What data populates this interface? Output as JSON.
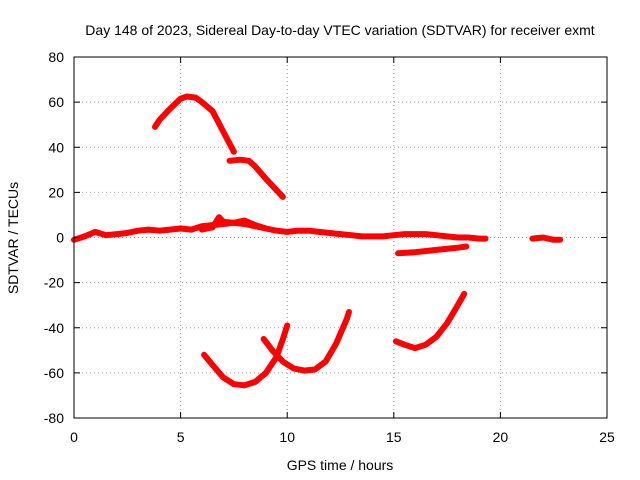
{
  "chart_data": {
    "type": "scatter",
    "title": "Day 148 of 2023, Sidereal Day-to-day VTEC variation (SDTVAR) for receiver exmt",
    "xlabel": "GPS time / hours",
    "ylabel": "SDTVAR / TECUs",
    "xlim": [
      0,
      25
    ],
    "ylim": [
      -80,
      80
    ],
    "xticks": [
      0,
      5,
      10,
      15,
      20,
      25
    ],
    "yticks": [
      -80,
      -60,
      -40,
      -20,
      0,
      20,
      40,
      60,
      80
    ],
    "xtick_labels": [
      "0",
      "5",
      "10",
      "15",
      "20",
      "25"
    ],
    "ytick_labels": [
      "-80",
      "-60",
      "-40",
      "-20",
      "0",
      "20",
      "40",
      "60",
      "80"
    ],
    "grid": true,
    "legend": "none",
    "series_color": "#ff0000",
    "series": [
      {
        "name": "near-zero band",
        "points": [
          [
            0.0,
            -1.0
          ],
          [
            0.5,
            0.5
          ],
          [
            1.0,
            2.5
          ],
          [
            1.5,
            1.0
          ],
          [
            2.0,
            1.5
          ],
          [
            2.5,
            2.0
          ],
          [
            3.0,
            3.0
          ],
          [
            3.5,
            3.5
          ],
          [
            4.0,
            3.0
          ],
          [
            4.5,
            3.5
          ],
          [
            5.0,
            4.0
          ],
          [
            5.5,
            3.5
          ],
          [
            6.0,
            5.0
          ],
          [
            6.5,
            5.5
          ],
          [
            7.0,
            6.0
          ],
          [
            7.5,
            6.5
          ],
          [
            8.0,
            6.0
          ],
          [
            8.5,
            5.0
          ],
          [
            9.0,
            4.0
          ],
          [
            9.5,
            3.0
          ],
          [
            10.0,
            2.5
          ],
          [
            10.5,
            3.0
          ],
          [
            11.0,
            3.0
          ],
          [
            11.5,
            2.5
          ],
          [
            12.0,
            2.0
          ],
          [
            12.5,
            1.5
          ],
          [
            13.0,
            1.0
          ],
          [
            13.5,
            0.5
          ],
          [
            14.0,
            0.5
          ],
          [
            14.5,
            0.5
          ],
          [
            15.0,
            1.0
          ],
          [
            15.5,
            1.5
          ],
          [
            16.0,
            1.5
          ],
          [
            16.5,
            1.5
          ],
          [
            17.0,
            1.0
          ],
          [
            17.5,
            0.5
          ],
          [
            18.0,
            0.0
          ],
          [
            18.5,
            0.0
          ],
          [
            19.0,
            -0.5
          ],
          [
            19.3,
            -0.5
          ]
        ]
      },
      {
        "name": "upper band",
        "points": [
          [
            6.0,
            3.5
          ],
          [
            6.5,
            4.5
          ],
          [
            6.8,
            9.0
          ],
          [
            7.0,
            7.0
          ],
          [
            7.5,
            6.5
          ],
          [
            8.0,
            7.5
          ],
          [
            8.5,
            5.5
          ],
          [
            9.0,
            4.0
          ]
        ]
      },
      {
        "name": "late-day band",
        "points": [
          [
            21.5,
            -0.5
          ],
          [
            22.0,
            0.0
          ],
          [
            22.5,
            -1.0
          ],
          [
            22.8,
            -1.0
          ]
        ]
      },
      {
        "name": "negative offset segment",
        "points": [
          [
            15.2,
            -7.0
          ],
          [
            16.0,
            -6.5
          ],
          [
            17.0,
            -5.5
          ],
          [
            18.0,
            -4.5
          ],
          [
            18.4,
            -4.0
          ]
        ]
      },
      {
        "name": "arc A",
        "points": [
          [
            3.8,
            49.0
          ],
          [
            4.0,
            52.0
          ],
          [
            4.5,
            57.0
          ],
          [
            5.0,
            61.5
          ],
          [
            5.3,
            62.5
          ],
          [
            5.7,
            62.0
          ],
          [
            6.0,
            60.0
          ],
          [
            6.5,
            56.0
          ],
          [
            7.0,
            47.0
          ],
          [
            7.5,
            38.0
          ]
        ]
      },
      {
        "name": "arc B",
        "points": [
          [
            7.3,
            34.0
          ],
          [
            7.8,
            34.5
          ],
          [
            8.2,
            34.0
          ],
          [
            8.5,
            31.5
          ],
          [
            9.0,
            26.0
          ],
          [
            9.5,
            21.0
          ],
          [
            9.8,
            18.0
          ]
        ]
      },
      {
        "name": "arc C",
        "points": [
          [
            6.1,
            -52.0
          ],
          [
            6.5,
            -56.5
          ],
          [
            7.0,
            -62.0
          ],
          [
            7.5,
            -65.0
          ],
          [
            8.0,
            -65.5
          ],
          [
            8.5,
            -64.0
          ],
          [
            9.0,
            -60.0
          ],
          [
            9.5,
            -53.0
          ],
          [
            9.8,
            -45.0
          ],
          [
            10.0,
            -39.0
          ]
        ]
      },
      {
        "name": "arc D",
        "points": [
          [
            8.9,
            -45.0
          ],
          [
            9.3,
            -50.0
          ],
          [
            9.8,
            -55.0
          ],
          [
            10.3,
            -58.0
          ],
          [
            10.8,
            -59.0
          ],
          [
            11.3,
            -58.5
          ],
          [
            11.8,
            -55.0
          ],
          [
            12.3,
            -47.0
          ],
          [
            12.8,
            -36.0
          ],
          [
            12.9,
            -33.0
          ]
        ]
      },
      {
        "name": "arc E",
        "points": [
          [
            15.1,
            -46.0
          ],
          [
            15.5,
            -47.5
          ],
          [
            16.0,
            -49.0
          ],
          [
            16.5,
            -47.5
          ],
          [
            17.0,
            -44.0
          ],
          [
            17.5,
            -38.0
          ],
          [
            18.0,
            -30.0
          ],
          [
            18.3,
            -25.0
          ]
        ]
      }
    ]
  }
}
